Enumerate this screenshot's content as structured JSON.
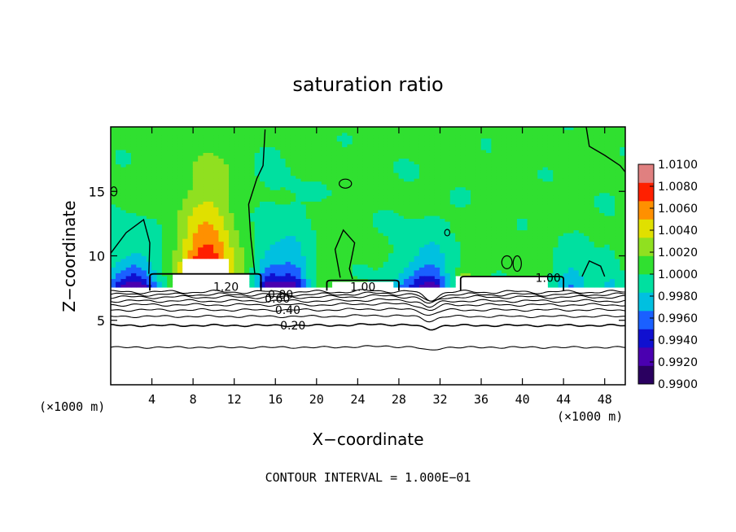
{
  "chart_data": {
    "type": "heatmap",
    "title": "saturation ratio",
    "xlabel": "X−coordinate",
    "ylabel": "Z−coordinate",
    "x_unit_left": "(×1000 m)",
    "x_unit_right": "(×1000 m)",
    "footer": "CONTOUR INTERVAL = 1.000E−01",
    "xlim": [
      0,
      50
    ],
    "ylim": [
      0,
      20
    ],
    "x_ticks": [
      4,
      8,
      12,
      16,
      20,
      24,
      28,
      32,
      36,
      40,
      44,
      48
    ],
    "x_tick_labels": [
      "4",
      "8",
      "12",
      "16",
      "20",
      "24",
      "28",
      "32",
      "36",
      "40",
      "44",
      "48"
    ],
    "y_ticks": [
      5,
      10,
      15
    ],
    "y_tick_labels": [
      "5",
      "10",
      "15"
    ],
    "colorbar": {
      "min": 0.99,
      "max": 1.01,
      "labels": [
        "1.0100",
        "1.0080",
        "1.0060",
        "1.0040",
        "1.0020",
        "1.0000",
        "0.9980",
        "0.9960",
        "0.9940",
        "0.9920",
        "0.9900"
      ],
      "colors": [
        "#2a0060",
        "#4a00b0",
        "#1010d0",
        "#1a60ff",
        "#00c0e0",
        "#00e0a0",
        "#30e030",
        "#90e020",
        "#e0e000",
        "#ff9000",
        "#ff2000",
        "#e08080"
      ]
    },
    "contour_labels": [
      {
        "text": "1.20",
        "x": 11.2,
        "y": 7.6
      },
      {
        "text": "1.00",
        "x": 24.5,
        "y": 7.6
      },
      {
        "text": "1.00",
        "x": 42.5,
        "y": 8.3
      },
      {
        "text": "0.80",
        "x": 16.5,
        "y": 7.0
      },
      {
        "text": "0.60",
        "x": 16.2,
        "y": 6.7
      },
      {
        "text": "0.40",
        "x": 17.2,
        "y": 5.8
      },
      {
        "text": "0.20",
        "x": 17.7,
        "y": 4.6
      }
    ],
    "contour_levels_y": [
      2.9,
      4.6,
      5.3,
      5.8,
      6.2,
      6.5,
      6.8,
      7.0,
      7.2
    ]
  }
}
